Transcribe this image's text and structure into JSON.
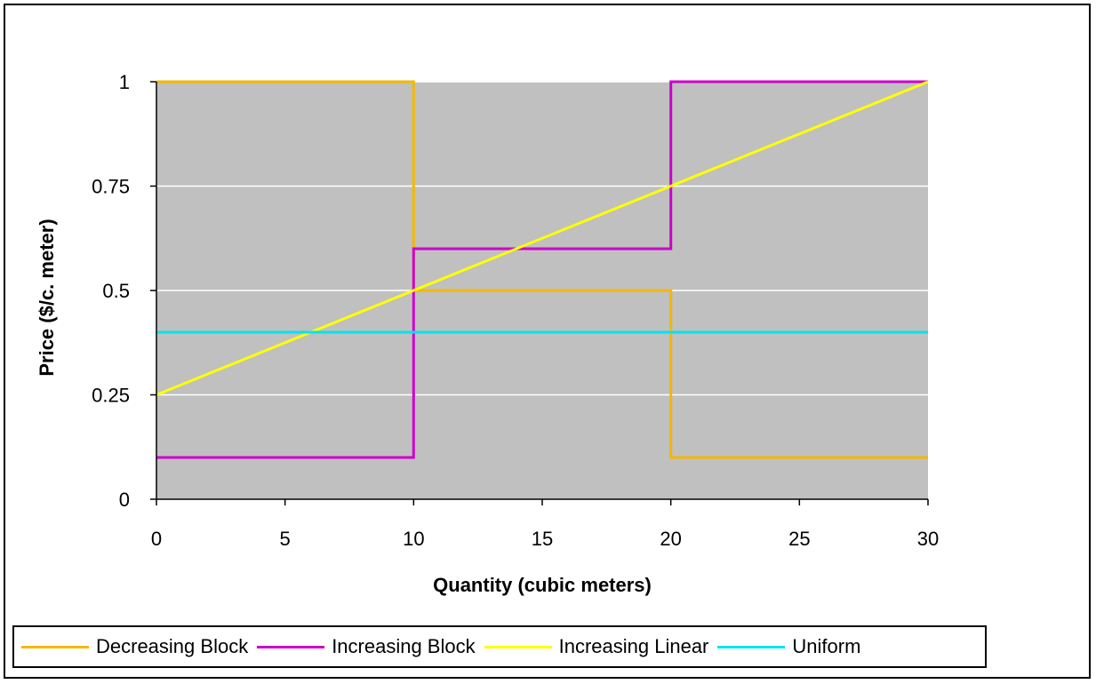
{
  "chart_data": {
    "type": "line",
    "title": "",
    "xlabel": "Quantity (cubic meters)",
    "ylabel": "Price ($/c. meter)",
    "xlim": [
      0,
      30
    ],
    "ylim": [
      0,
      1
    ],
    "x_ticks": [
      "0",
      "5",
      "10",
      "15",
      "20",
      "25",
      "30"
    ],
    "y_ticks": [
      "0",
      "0.25",
      "0.5",
      "0.75",
      "1"
    ],
    "grid": "horizontal",
    "plot_background": "#c0c0c0",
    "legend_position": "bottom",
    "series": [
      {
        "name": "Decreasing Block",
        "color": "#f5b800",
        "step": true,
        "points": [
          [
            0,
            1
          ],
          [
            10,
            1
          ],
          [
            10,
            0.5
          ],
          [
            20,
            0.5
          ],
          [
            20,
            0.1
          ],
          [
            30,
            0.1
          ]
        ]
      },
      {
        "name": "Increasing Block",
        "color": "#cc00cc",
        "step": true,
        "points": [
          [
            0,
            0.1
          ],
          [
            10,
            0.1
          ],
          [
            10,
            0.6
          ],
          [
            20,
            0.6
          ],
          [
            20,
            1
          ],
          [
            30,
            1
          ]
        ]
      },
      {
        "name": "Increasing Linear",
        "color": "#ffff00",
        "step": false,
        "points": [
          [
            0,
            0.25
          ],
          [
            30,
            1
          ]
        ]
      },
      {
        "name": "Uniform",
        "color": "#00e5ee",
        "step": false,
        "points": [
          [
            0,
            0.4
          ],
          [
            30,
            0.4
          ]
        ]
      }
    ]
  }
}
